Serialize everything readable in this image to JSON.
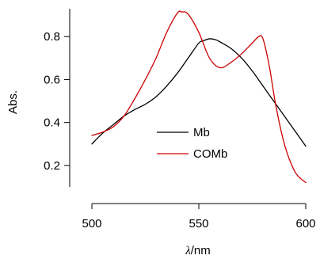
{
  "chart_data": {
    "type": "line",
    "title": "",
    "xlabel": "λ/nm",
    "xlabel_parts": {
      "symbol": "λ",
      "unit": "/nm"
    },
    "ylabel": "Abs.",
    "xlim": [
      500,
      600
    ],
    "ylim": [
      0.1,
      0.93
    ],
    "x_ticks": [
      500,
      550,
      600
    ],
    "x_tick_labels": [
      "500",
      "550",
      "600"
    ],
    "y_ticks": [
      0.2,
      0.4,
      0.6,
      0.8
    ],
    "y_tick_labels": [
      "0.2",
      "0.4",
      "0.6",
      "0.8"
    ],
    "grid": false,
    "legend_position": "center",
    "series": [
      {
        "name": "Mb",
        "color": "#000000",
        "x": [
          500,
          505,
          510,
          515,
          520,
          525,
          530,
          535,
          540,
          545,
          550,
          552,
          555,
          558,
          560,
          565,
          570,
          575,
          580,
          585,
          590,
          595,
          600
        ],
        "y": [
          0.3,
          0.35,
          0.39,
          0.43,
          0.46,
          0.485,
          0.52,
          0.57,
          0.63,
          0.7,
          0.77,
          0.78,
          0.79,
          0.785,
          0.775,
          0.745,
          0.7,
          0.64,
          0.57,
          0.5,
          0.43,
          0.36,
          0.29
        ]
      },
      {
        "name": "COMb",
        "color": "#cc0000",
        "x": [
          500,
          505,
          510,
          515,
          520,
          525,
          530,
          535,
          540,
          542,
          545,
          550,
          555,
          560,
          565,
          570,
          575,
          578,
          580,
          583,
          586,
          590,
          595,
          600
        ],
        "y": [
          0.34,
          0.355,
          0.38,
          0.43,
          0.51,
          0.6,
          0.7,
          0.82,
          0.91,
          0.915,
          0.905,
          0.82,
          0.7,
          0.655,
          0.68,
          0.72,
          0.77,
          0.8,
          0.79,
          0.66,
          0.48,
          0.3,
          0.17,
          0.12
        ]
      }
    ]
  }
}
